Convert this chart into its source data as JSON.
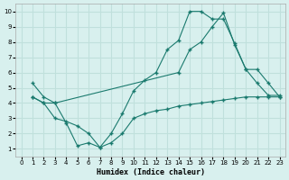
{
  "xlabel": "Humidex (Indice chaleur)",
  "xlim": [
    -0.5,
    23.5
  ],
  "ylim": [
    0.5,
    10.5
  ],
  "xticks": [
    0,
    1,
    2,
    3,
    4,
    5,
    6,
    7,
    8,
    9,
    10,
    11,
    12,
    13,
    14,
    15,
    16,
    17,
    18,
    19,
    20,
    21,
    22,
    23
  ],
  "yticks": [
    1,
    2,
    3,
    4,
    5,
    6,
    7,
    8,
    9,
    10
  ],
  "background_color": "#d8f0ee",
  "grid_color": "#c0e0dc",
  "line_color": "#1a7a6e",
  "line1_x": [
    1,
    2,
    3,
    4,
    5,
    6,
    7,
    8,
    9,
    10,
    11,
    12,
    13,
    14,
    15,
    16,
    17,
    18,
    19,
    20,
    21,
    22,
    23
  ],
  "line1_y": [
    5.3,
    4.4,
    4.0,
    2.7,
    1.2,
    1.4,
    1.1,
    2.0,
    3.3,
    4.8,
    5.5,
    6.0,
    7.5,
    8.1,
    10.0,
    10.0,
    9.5,
    9.5,
    7.9,
    6.2,
    5.3,
    4.5,
    4.5
  ],
  "line2_x": [
    1,
    2,
    3,
    14,
    15,
    16,
    17,
    18,
    19,
    20,
    21,
    22,
    23
  ],
  "line2_y": [
    4.4,
    4.0,
    4.0,
    6.0,
    7.5,
    8.0,
    9.0,
    9.9,
    7.8,
    6.2,
    6.2,
    5.3,
    4.4
  ],
  "line3_x": [
    1,
    2,
    3,
    4,
    5,
    6,
    7,
    8,
    9,
    10,
    11,
    12,
    13,
    14,
    15,
    16,
    17,
    18,
    19,
    20,
    21,
    22,
    23
  ],
  "line3_y": [
    4.4,
    4.0,
    3.0,
    2.8,
    2.5,
    2.0,
    1.1,
    1.4,
    2.0,
    3.0,
    3.3,
    3.5,
    3.6,
    3.8,
    3.9,
    4.0,
    4.1,
    4.2,
    4.3,
    4.4,
    4.4,
    4.4,
    4.4
  ]
}
